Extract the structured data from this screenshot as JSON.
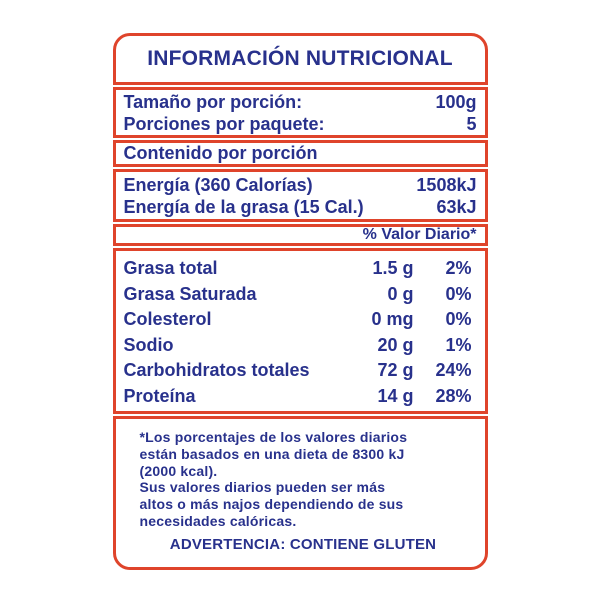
{
  "colors": {
    "border": "#DF442B",
    "text": "#28318C",
    "bg": "#FFFFFF"
  },
  "title": "INFORMACIÓN NUTRICIONAL",
  "serving": {
    "rows": [
      {
        "label": "Tamaño por porción:",
        "value": "100g"
      },
      {
        "label": "Porciones por paquete:",
        "value": "5"
      }
    ]
  },
  "content_header": "Contenido por porción",
  "energy": {
    "rows": [
      {
        "label": "Energía (360 Calorías)",
        "value": "1508kJ"
      },
      {
        "label": "Energía de la grasa (15 Cal.)",
        "value": "63kJ"
      }
    ]
  },
  "daily_value_header": "% Valor Diario*",
  "nutrients": [
    {
      "name": "Grasa total",
      "amount": "1.5 g",
      "percent": "2%"
    },
    {
      "name": "Grasa Saturada",
      "amount": "0 g",
      "percent": "0%"
    },
    {
      "name": "Colesterol",
      "amount": "0 mg",
      "percent": "0%"
    },
    {
      "name": "Sodio",
      "amount": "20 g",
      "percent": "1%"
    },
    {
      "name": "Carbohidratos totales",
      "amount": "72 g",
      "percent": "24%"
    },
    {
      "name": "Proteína",
      "amount": "14 g",
      "percent": "28%"
    }
  ],
  "footnote": "*Los porcentajes de los valores diarios\nestán basados en una dieta de 8300 kJ\n(2000 kcal).\nSus valores diarios pueden ser más\naltos o más najos dependiendo de sus\nnecesidades calóricas.",
  "warning": "ADVERTENCIA: CONTIENE GLUTEN"
}
